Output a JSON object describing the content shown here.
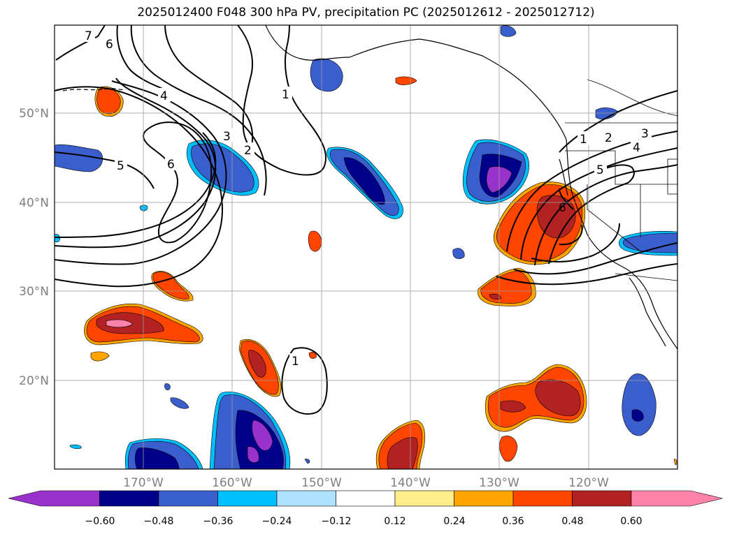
{
  "title": "2025012400 F048 300 hPa PV, precipitation PC (2025012612 - 2025012712)",
  "map": {
    "lon_labels": [
      "170°W",
      "160°W",
      "150°W",
      "140°W",
      "130°W",
      "120°W"
    ],
    "lat_labels": [
      "50°N",
      "40°N",
      "30°N",
      "20°N"
    ],
    "pv_contour_labels": [
      "7",
      "6",
      "4",
      "5",
      "6",
      "3",
      "2",
      "1",
      "1",
      "1",
      "2",
      "3",
      "4",
      "5",
      "6"
    ]
  },
  "colorbar": {
    "levels": [
      "−0.60",
      "−0.48",
      "−0.36",
      "−0.24",
      "−0.12",
      "0.12",
      "0.24",
      "0.36",
      "0.48",
      "0.60"
    ],
    "colors": [
      "#9932cc",
      "#00008b",
      "#3a5fcd",
      "#00bfff",
      "#b0e2ff",
      "#ffffff",
      "#ffec8b",
      "#ffa500",
      "#ff4500",
      "#b22222",
      "#ff82ab"
    ]
  }
}
